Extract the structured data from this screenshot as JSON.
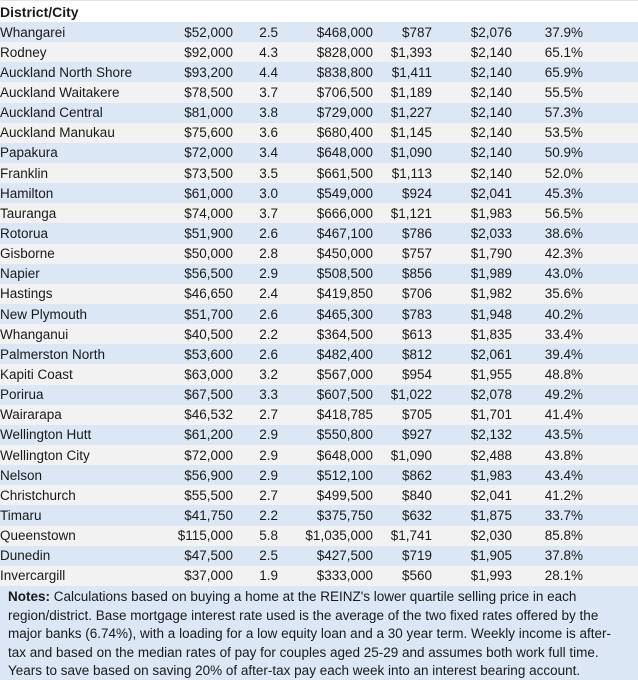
{
  "table": {
    "header_label": "District/City",
    "column_keys": [
      "district",
      "deposit",
      "years-to-save",
      "house-price",
      "weekly-payment",
      "weekly-income",
      "income-share"
    ],
    "rows": [
      [
        "Whangarei",
        "$52,000",
        "2.5",
        "$468,000",
        "$787",
        "$2,076",
        "37.9%"
      ],
      [
        "Rodney",
        "$92,000",
        "4.3",
        "$828,000",
        "$1,393",
        "$2,140",
        "65.1%"
      ],
      [
        "Auckland North Shore",
        "$93,200",
        "4.4",
        "$838,800",
        "$1,411",
        "$2,140",
        "65.9%"
      ],
      [
        "Auckland Waitakere",
        "$78,500",
        "3.7",
        "$706,500",
        "$1,189",
        "$2,140",
        "55.5%"
      ],
      [
        "Auckland Central",
        "$81,000",
        "3.8",
        "$729,000",
        "$1,227",
        "$2,140",
        "57.3%"
      ],
      [
        "Auckland Manukau",
        "$75,600",
        "3.6",
        "$680,400",
        "$1,145",
        "$2,140",
        "53.5%"
      ],
      [
        "Papakura",
        "$72,000",
        "3.4",
        "$648,000",
        "$1,090",
        "$2,140",
        "50.9%"
      ],
      [
        "Franklin",
        "$73,500",
        "3.5",
        "$661,500",
        "$1,113",
        "$2,140",
        "52.0%"
      ],
      [
        "Hamilton",
        "$61,000",
        "3.0",
        "$549,000",
        "$924",
        "$2,041",
        "45.3%"
      ],
      [
        "Tauranga",
        "$74,000",
        "3.7",
        "$666,000",
        "$1,121",
        "$1,983",
        "56.5%"
      ],
      [
        "Rotorua",
        "$51,900",
        "2.6",
        "$467,100",
        "$786",
        "$2,033",
        "38.6%"
      ],
      [
        "Gisborne",
        "$50,000",
        "2.8",
        "$450,000",
        "$757",
        "$1,790",
        "42.3%"
      ],
      [
        "Napier",
        "$56,500",
        "2.9",
        "$508,500",
        "$856",
        "$1,989",
        "43.0%"
      ],
      [
        "Hastings",
        "$46,650",
        "2.4",
        "$419,850",
        "$706",
        "$1,982",
        "35.6%"
      ],
      [
        "New Plymouth",
        "$51,700",
        "2.6",
        "$465,300",
        "$783",
        "$1,948",
        "40.2%"
      ],
      [
        "Whanganui",
        "$40,500",
        "2.2",
        "$364,500",
        "$613",
        "$1,835",
        "33.4%"
      ],
      [
        "Palmerston North",
        "$53,600",
        "2.6",
        "$482,400",
        "$812",
        "$2,061",
        "39.4%"
      ],
      [
        "Kapiti Coast",
        "$63,000",
        "3.2",
        "$567,000",
        "$954",
        "$1,955",
        "48.8%"
      ],
      [
        "Porirua",
        "$67,500",
        "3.3",
        "$607,500",
        "$1,022",
        "$2,078",
        "49.2%"
      ],
      [
        "Wairarapa",
        "$46,532",
        "2.7",
        "$418,785",
        "$705",
        "$1,701",
        "41.4%"
      ],
      [
        "Wellington Hutt",
        "$61,200",
        "2.9",
        "$550,800",
        "$927",
        "$2,132",
        "43.5%"
      ],
      [
        "Wellington City",
        "$72,000",
        "2.9",
        "$648,000",
        "$1,090",
        "$2,488",
        "43.8%"
      ],
      [
        "Nelson",
        "$56,900",
        "2.9",
        "$512,100",
        "$862",
        "$1,983",
        "43.4%"
      ],
      [
        "Christchurch",
        "$55,500",
        "2.7",
        "$499,500",
        "$840",
        "$2,041",
        "41.2%"
      ],
      [
        "Timaru",
        "$41,750",
        "2.2",
        "$375,750",
        "$632",
        "$1,875",
        "33.7%"
      ],
      [
        "Queenstown",
        "$115,000",
        "5.8",
        "$1,035,000",
        "$1,741",
        "$2,030",
        "85.8%"
      ],
      [
        "Dunedin",
        "$47,500",
        "2.5",
        "$427,500",
        "$719",
        "$1,905",
        "37.8%"
      ],
      [
        "Invercargill",
        "$37,000",
        "1.9",
        "$333,000",
        "$560",
        "$1,993",
        "28.1%"
      ]
    ]
  },
  "notes": {
    "label": "Notes:",
    "text": "Calculations based on buying a home at the REINZ's lower quartile selling price in each region/district. Base mortgage interest rate used is the average of the two fixed rates offered by the major banks (6.74%), with a loading for a low equity loan and a 30 year term. Weekly income is after-tax and based on the median rates of pay for couples aged 25-29 and assumes both work full time. Years to save based on saving 20% of after-tax pay each week into an interest bearing account."
  },
  "colors": {
    "band_blue": "#dbe7f4",
    "band_gray": "#f2f2f2",
    "header_bg": "#ffffff",
    "notes_bg": "#dbe7f4",
    "text": "#1a1a1a"
  }
}
